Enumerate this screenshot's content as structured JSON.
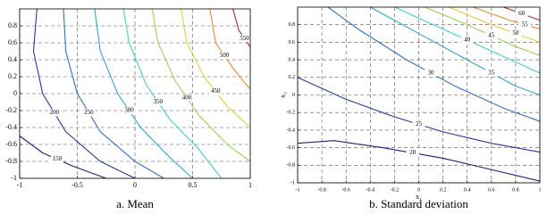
{
  "chart_data": [
    {
      "type": "contour",
      "caption": "a.  Mean",
      "xlim": [
        -1,
        1
      ],
      "ylim": [
        -1,
        1
      ],
      "xticks": [
        -1,
        -0.5,
        0,
        0.5,
        1
      ],
      "yticks": [
        -1,
        -0.8,
        -0.6,
        -0.4,
        -0.2,
        0,
        0.2,
        0.4,
        0.6,
        0.8
      ],
      "grid": true,
      "series": [
        {
          "level": 150,
          "color": "#1c1c8a",
          "x": [
            -1,
            -0.8,
            -0.55,
            -0.25
          ],
          "y": [
            -0.5,
            -0.7,
            -0.85,
            -1
          ]
        },
        {
          "level": 200,
          "color": "#2636b0",
          "x": [
            -0.85,
            -0.88,
            -0.8,
            -0.6,
            -0.3,
            0
          ],
          "y": [
            1,
            0.5,
            0,
            -0.45,
            -0.8,
            -1
          ]
        },
        {
          "level": 250,
          "color": "#2e6fd6",
          "x": [
            -0.62,
            -0.6,
            -0.5,
            -0.3,
            0,
            0.25
          ],
          "y": [
            1,
            0.5,
            0,
            -0.45,
            -0.8,
            -1
          ]
        },
        {
          "level": 300,
          "color": "#25a9dc",
          "x": [
            -0.35,
            -0.3,
            -0.15,
            0.05,
            0.3,
            0.5
          ],
          "y": [
            1,
            0.5,
            0,
            -0.4,
            -0.75,
            -1
          ]
        },
        {
          "level": 350,
          "color": "#3ad3c8",
          "x": [
            -0.1,
            -0.05,
            0.1,
            0.3,
            0.55,
            0.75
          ],
          "y": [
            1,
            0.6,
            0.1,
            -0.3,
            -0.65,
            -1
          ]
        },
        {
          "level": 400,
          "color": "#9ad64a",
          "x": [
            0.15,
            0.2,
            0.35,
            0.55,
            0.8,
            1
          ],
          "y": [
            1,
            0.6,
            0.15,
            -0.25,
            -0.6,
            -0.8
          ]
        },
        {
          "level": 450,
          "color": "#e8cf30",
          "x": [
            0.4,
            0.45,
            0.6,
            0.8,
            1
          ],
          "y": [
            1,
            0.6,
            0.2,
            -0.15,
            -0.4
          ]
        },
        {
          "level": 500,
          "color": "#ef8a28",
          "x": [
            0.65,
            0.7,
            0.85,
            1
          ],
          "y": [
            1,
            0.6,
            0.3,
            0.05
          ]
        },
        {
          "level": 550,
          "color": "#b8281e",
          "x": [
            0.85,
            0.9,
            1
          ],
          "y": [
            1,
            0.75,
            0.55
          ]
        }
      ]
    },
    {
      "type": "contour",
      "caption": "b.  Standard deviation",
      "xlabel": "x₁",
      "ylabel": "x₂",
      "xlim": [
        -1,
        1
      ],
      "ylim": [
        -1,
        1
      ],
      "xticks": [
        -1,
        -0.8,
        -0.6,
        -0.4,
        -0.2,
        0,
        0.2,
        0.4,
        0.6,
        0.8,
        1
      ],
      "yticks": [
        -1,
        -0.8,
        -0.6,
        -0.4,
        -0.2,
        0,
        0.2,
        0.4,
        0.6,
        0.8
      ],
      "grid": true,
      "series": [
        {
          "level": 20,
          "color": "#1c1c8a",
          "x": [
            -1,
            -0.7,
            -0.3,
            0.2,
            0.6,
            1
          ],
          "y": [
            -0.55,
            -0.52,
            -0.6,
            -0.72,
            -0.85,
            -0.98
          ]
        },
        {
          "level": 25,
          "color": "#2636b0",
          "x": [
            -1,
            -0.6,
            -0.2,
            0.2,
            0.6,
            1
          ],
          "y": [
            0.2,
            -0.05,
            -0.25,
            -0.42,
            -0.55,
            -0.65
          ]
        },
        {
          "level": 30,
          "color": "#2e6fd6",
          "x": [
            -0.75,
            -0.5,
            -0.1,
            0.3,
            0.7,
            1
          ],
          "y": [
            1,
            0.75,
            0.4,
            0.1,
            -0.15,
            -0.3
          ]
        },
        {
          "level": 35,
          "color": "#25a9dc",
          "x": [
            -0.4,
            0,
            0.4,
            0.8,
            1
          ],
          "y": [
            1,
            0.7,
            0.4,
            0.1,
            0
          ]
        },
        {
          "level": 40,
          "color": "#3ad3c8",
          "x": [
            -0.2,
            0.2,
            0.6,
            1
          ],
          "y": [
            1,
            0.75,
            0.5,
            0.25
          ]
        },
        {
          "level": 45,
          "color": "#9ad64a",
          "x": [
            0.05,
            0.4,
            0.8,
            1
          ],
          "y": [
            1,
            0.8,
            0.55,
            0.45
          ]
        },
        {
          "level": 50,
          "color": "#e8cf30",
          "x": [
            0.25,
            0.6,
            1
          ],
          "y": [
            1,
            0.8,
            0.6
          ]
        },
        {
          "level": 55,
          "color": "#ef8a28",
          "x": [
            0.45,
            0.75,
            1
          ],
          "y": [
            1,
            0.85,
            0.75
          ]
        },
        {
          "level": 60,
          "color": "#b8281e",
          "x": [
            0.7,
            1
          ],
          "y": [
            1,
            0.85
          ]
        }
      ]
    }
  ]
}
